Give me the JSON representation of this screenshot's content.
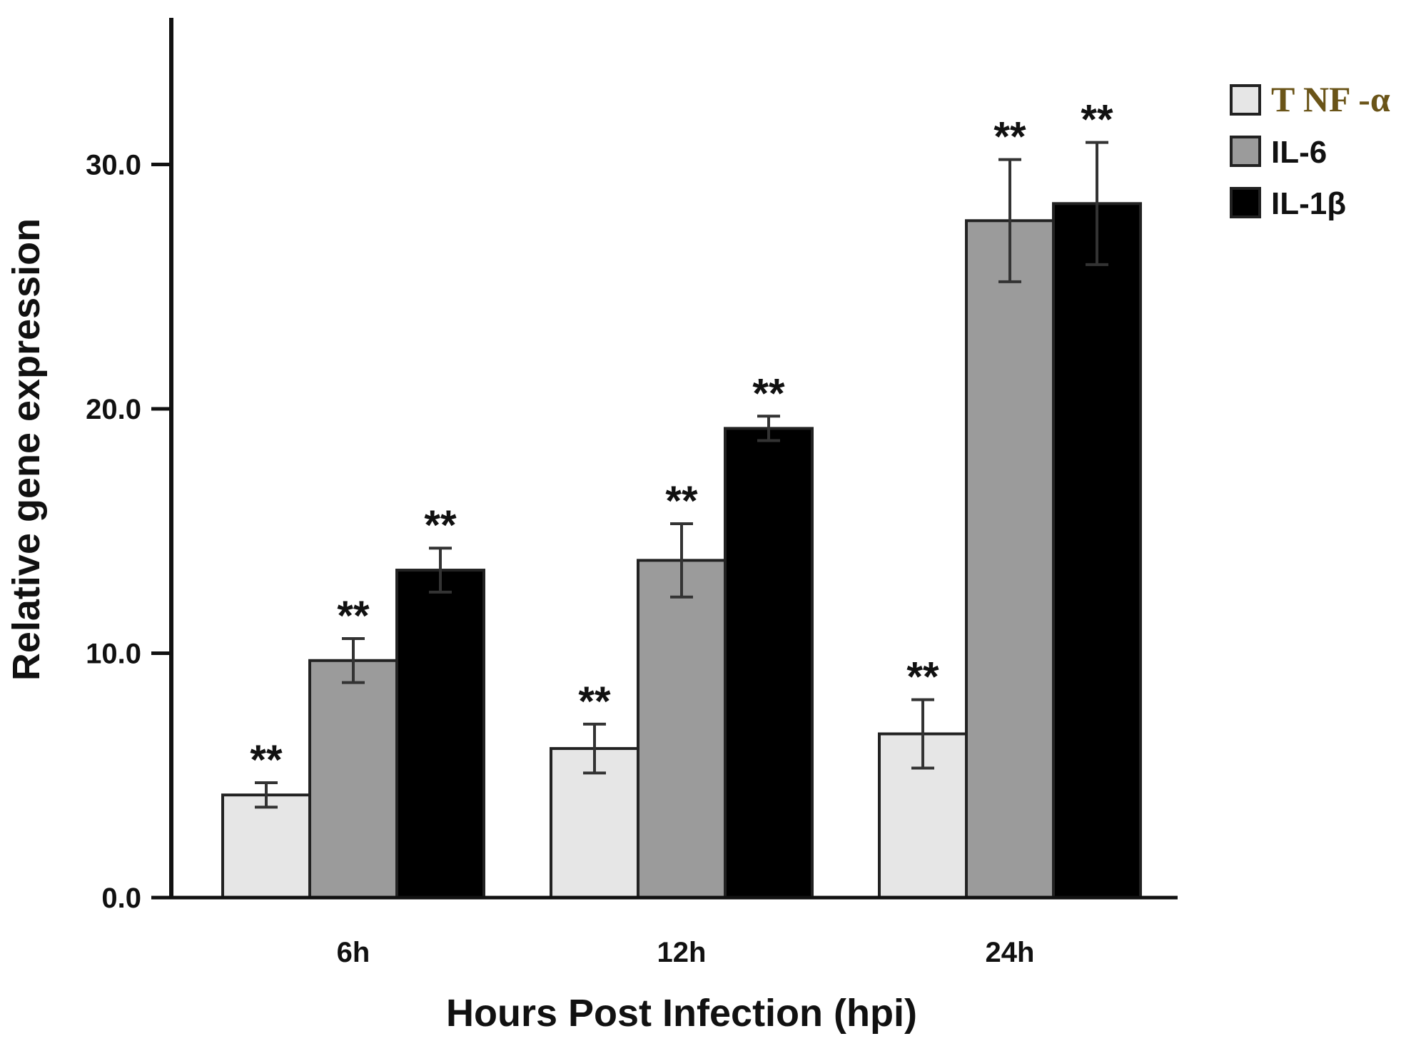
{
  "chart_data": {
    "type": "bar",
    "title": "",
    "xlabel": "Hours Post Infection (hpi)",
    "ylabel": "Relative gene expression",
    "categories": [
      "6h",
      "12h",
      "24h"
    ],
    "ylim": [
      0,
      36
    ],
    "yticks": [
      "0.0",
      "10.0",
      "20.0",
      "30.0"
    ],
    "grid": false,
    "legend_position": "top-right",
    "series": [
      {
        "name": "T NF -α",
        "color": "#e6e6e6",
        "values": [
          4.2,
          6.1,
          6.7
        ],
        "errors": [
          0.5,
          1.0,
          1.4
        ],
        "significance": [
          "**",
          "**",
          "**"
        ]
      },
      {
        "name": "IL-6",
        "color": "#9b9b9b",
        "values": [
          9.7,
          13.8,
          27.7
        ],
        "errors": [
          0.9,
          1.5,
          2.5
        ],
        "significance": [
          "**",
          "**",
          "**"
        ]
      },
      {
        "name": "IL-1β",
        "color": "#000000",
        "values": [
          13.4,
          19.2,
          28.4
        ],
        "errors": [
          0.9,
          0.5,
          2.5
        ],
        "significance": [
          "**",
          "**",
          "**"
        ]
      }
    ]
  }
}
